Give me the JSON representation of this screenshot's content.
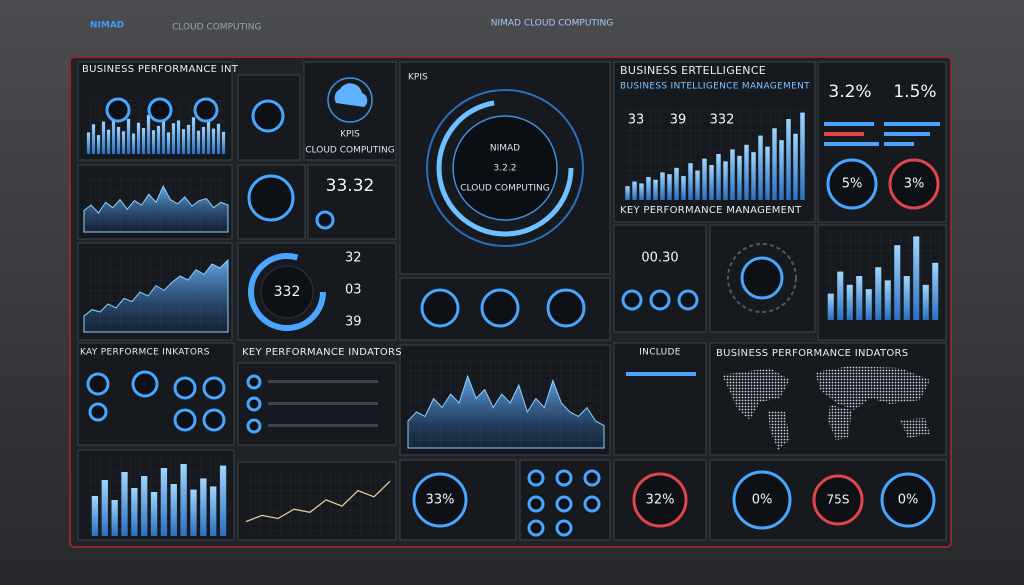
{
  "header": {
    "brand": "NIMAD",
    "brand_sub": "CLOUD COMPUTING",
    "title": "NIMAD CLOUD COMPUTING"
  },
  "panels": {
    "perf_title": "BUSINESS PERFORMANCE INT",
    "logo_title": "KPIS",
    "logo_sub": "CLOUD COMPUTING",
    "small_value": "33.32",
    "gauge_value": "332",
    "gauge_list": [
      "32",
      "03",
      "39"
    ],
    "center": {
      "kicker": "KPIS",
      "label": "NIMAD",
      "value": "3.2.2",
      "sub": "CLOUD COMPUTING"
    },
    "bi": {
      "title": "BUSINESS ERTELLIGENCE",
      "subtitle": "BUSINESS INTELLIGENCE MANAGEMENT",
      "stats": [
        "33",
        "39",
        "332"
      ],
      "footer": "KEY PERFORMANCE MANAGEMENT"
    },
    "rates": {
      "stats": [
        "3.2%",
        "1.5%"
      ],
      "gauges": [
        "5%",
        "3%"
      ]
    },
    "mini_value": "00.30",
    "kpi_left_title": "KAY PERFORMCE INKATORS",
    "kpi_mid_title": "KEY PERFORMANCE INDATORS",
    "include_title": "INCLUDE",
    "map_title": "BUSINESS PERFORMANCE INDATORS",
    "bottom": {
      "left": "33%",
      "mid": "32%",
      "right": [
        "0%",
        "75S",
        "0%"
      ]
    }
  },
  "charts": [
    {
      "type": "bar",
      "ylim": [
        0,
        100
      ],
      "values": [
        40,
        55,
        35,
        60,
        45,
        70,
        50,
        42,
        65,
        38,
        58,
        48,
        72,
        44,
        52,
        66,
        40,
        57,
        62,
        46,
        54,
        68,
        43,
        50,
        60,
        47,
        56,
        41
      ]
    },
    {
      "type": "area",
      "ylim": [
        0,
        100
      ],
      "values": [
        40,
        50,
        35,
        55,
        45,
        60,
        42,
        58,
        50,
        70,
        55,
        85,
        60,
        52,
        65,
        48,
        58,
        62,
        45,
        55,
        50
      ]
    },
    {
      "type": "area",
      "ylim": [
        0,
        100
      ],
      "values": [
        20,
        28,
        25,
        35,
        30,
        42,
        38,
        50,
        45,
        58,
        52,
        62,
        70,
        65,
        78,
        72,
        85,
        80,
        90
      ]
    },
    {
      "type": "bar",
      "ylim": [
        0,
        100
      ],
      "values": [
        15,
        20,
        18,
        25,
        22,
        30,
        28,
        35,
        26,
        40,
        32,
        45,
        38,
        50,
        42,
        55,
        48,
        60,
        52,
        70,
        58,
        78,
        65,
        88,
        72,
        95
      ]
    },
    {
      "type": "bar",
      "ylim": [
        0,
        100
      ],
      "values": [
        30,
        55,
        40,
        50,
        35,
        60,
        45,
        85,
        50,
        95,
        40,
        65
      ]
    },
    {
      "type": "area",
      "ylim": [
        0,
        100
      ],
      "values": [
        30,
        40,
        35,
        55,
        45,
        60,
        50,
        80,
        55,
        65,
        45,
        60,
        50,
        70,
        40,
        55,
        45,
        75,
        50,
        40,
        35,
        45,
        30,
        25
      ]
    },
    {
      "type": "bar",
      "ylim": [
        0,
        100
      ],
      "values": [
        50,
        70,
        45,
        80,
        60,
        75,
        55,
        85,
        65,
        90,
        58,
        72,
        62,
        88
      ]
    },
    {
      "type": "line",
      "ylim": [
        0,
        100
      ],
      "values": [
        20,
        30,
        25,
        40,
        35,
        55,
        45,
        70,
        60,
        85
      ]
    }
  ]
}
